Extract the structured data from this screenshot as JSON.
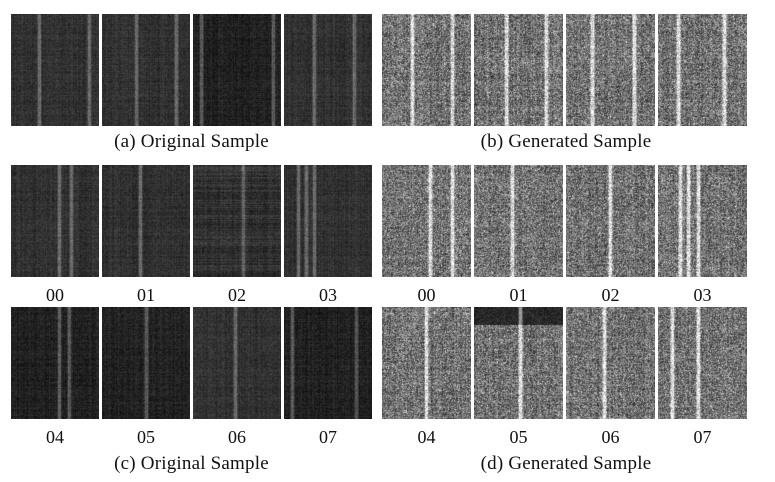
{
  "panels": {
    "a": {
      "caption": "(a) Original Sample"
    },
    "b": {
      "caption": "(b) Generated Sample"
    },
    "c": {
      "caption": "(c) Original Sample",
      "tiles": [
        "00",
        "01",
        "02",
        "03",
        "04",
        "05",
        "06",
        "07"
      ]
    },
    "d": {
      "caption": "(d) Generated Sample",
      "tiles": [
        "00",
        "01",
        "02",
        "03",
        "04",
        "05",
        "06",
        "07"
      ]
    }
  },
  "style": {
    "original_tone": "dark",
    "generated_tone": "bright-noisy"
  }
}
